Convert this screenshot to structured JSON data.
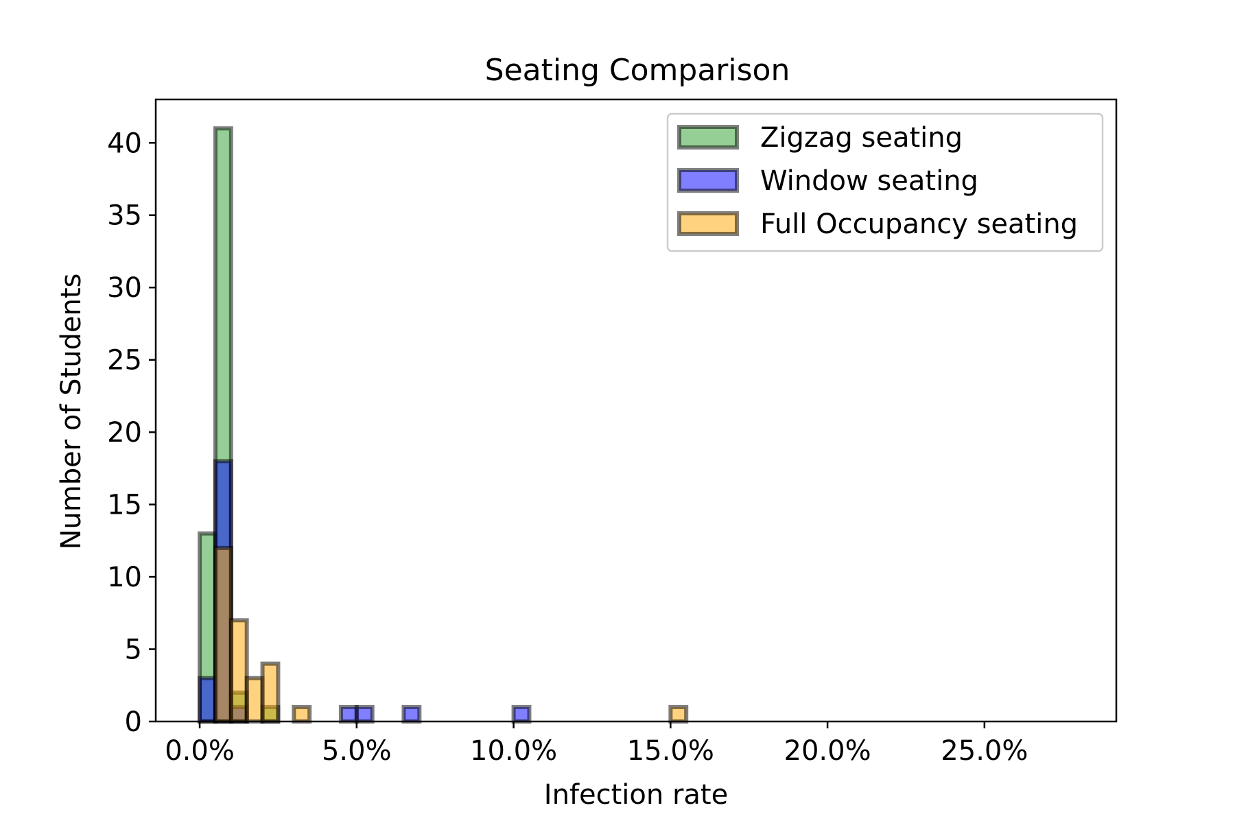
{
  "chart_data": {
    "type": "bar",
    "title": "Seating Comparison",
    "xlabel": "Infection rate",
    "ylabel": "Number of Students",
    "xlim": [
      -1.4,
      29.2
    ],
    "ylim": [
      0,
      43
    ],
    "bin_width": 0.5,
    "x_ticks": [
      0,
      5,
      10,
      15,
      20,
      25
    ],
    "x_tick_labels": [
      "0.0%",
      "5.0%",
      "10.0%",
      "15.0%",
      "20.0%",
      "25.0%"
    ],
    "y_ticks": [
      0,
      5,
      10,
      15,
      20,
      25,
      30,
      35,
      40
    ],
    "y_tick_labels": [
      "0",
      "5",
      "10",
      "15",
      "20",
      "25",
      "30",
      "35",
      "40"
    ],
    "grid": false,
    "legend_position": "top-right",
    "series": [
      {
        "name": "Zigzag seating",
        "color": "#2ca02c",
        "bins": [
          {
            "x": 0.0,
            "value": 13
          },
          {
            "x": 0.5,
            "value": 41
          },
          {
            "x": 1.0,
            "value": 2
          },
          {
            "x": 2.0,
            "value": 1
          }
        ]
      },
      {
        "name": "Window seating",
        "color": "#0000ff",
        "bins": [
          {
            "x": 0.0,
            "value": 3
          },
          {
            "x": 0.5,
            "value": 18
          },
          {
            "x": 1.0,
            "value": 1
          },
          {
            "x": 4.5,
            "value": 1
          },
          {
            "x": 5.0,
            "value": 1
          },
          {
            "x": 6.5,
            "value": 1
          },
          {
            "x": 10.0,
            "value": 1
          }
        ]
      },
      {
        "name": "Full Occupancy seating",
        "color": "#ffa500",
        "bins": [
          {
            "x": 0.5,
            "value": 12
          },
          {
            "x": 1.0,
            "value": 7
          },
          {
            "x": 1.5,
            "value": 3
          },
          {
            "x": 2.0,
            "value": 4
          },
          {
            "x": 3.0,
            "value": 1
          },
          {
            "x": 15.0,
            "value": 1
          }
        ]
      }
    ]
  }
}
